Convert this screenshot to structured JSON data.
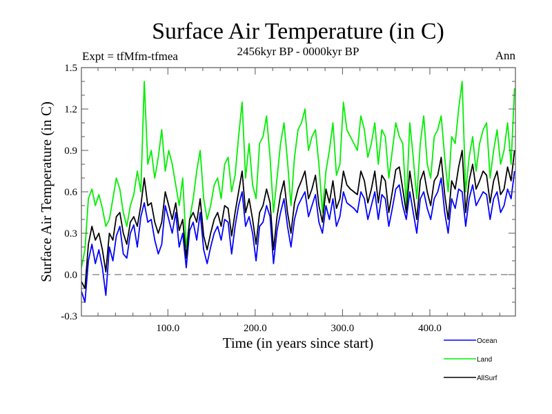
{
  "chart_data": {
    "type": "line",
    "title": "Surface Air Temperature (in C)",
    "subtitle": "2456kyr BP - 0000kyr BP",
    "left_label": "Expt = tfMfm-tfmea",
    "right_label": "Ann",
    "xlabel": "Time (in years since start)",
    "ylabel": "Surface Air Temperature (in C)",
    "xlim": [
      1,
      498
    ],
    "ylim": [
      -0.3,
      1.5
    ],
    "xticks": [
      100,
      200,
      300,
      400
    ],
    "xtick_labels": [
      "100.0",
      "200.0",
      "300.0",
      "400.0"
    ],
    "x_minor_step": 20,
    "yticks": [
      -0.3,
      0.0,
      0.3,
      0.6,
      0.9,
      1.2,
      1.5
    ],
    "ytick_labels": [
      "-0.3",
      "0.0",
      "0.3",
      "0.6",
      "0.9",
      "1.2",
      "1.5"
    ],
    "y_minor_step": 0.1,
    "reference_line": {
      "y": 0.0,
      "style": "dashed"
    },
    "legend_position": "bottom-right",
    "x": [
      1,
      5,
      9,
      13,
      17,
      21,
      25,
      29,
      33,
      37,
      41,
      45,
      49,
      53,
      57,
      61,
      65,
      69,
      73,
      77,
      81,
      85,
      89,
      93,
      97,
      101,
      105,
      109,
      113,
      117,
      121,
      125,
      129,
      133,
      137,
      141,
      145,
      149,
      153,
      157,
      161,
      165,
      169,
      173,
      177,
      181,
      185,
      189,
      193,
      197,
      201,
      205,
      209,
      213,
      217,
      221,
      225,
      229,
      233,
      237,
      241,
      245,
      249,
      253,
      257,
      261,
      265,
      269,
      273,
      277,
      281,
      285,
      289,
      293,
      297,
      301,
      305,
      309,
      313,
      317,
      321,
      325,
      329,
      333,
      337,
      341,
      345,
      349,
      353,
      357,
      361,
      365,
      369,
      373,
      377,
      381,
      385,
      389,
      393,
      397,
      401,
      405,
      409,
      413,
      417,
      421,
      425,
      429,
      433,
      437,
      441,
      445,
      449,
      453,
      457,
      461,
      465,
      469,
      473,
      477,
      481,
      485,
      489,
      493,
      497
    ],
    "series": [
      {
        "name": "Ocean",
        "color": "#0000ff",
        "values": [
          -0.12,
          -0.2,
          0.1,
          0.22,
          0.08,
          0.18,
          0.05,
          -0.15,
          0.2,
          0.1,
          0.28,
          0.35,
          0.15,
          0.12,
          0.3,
          0.36,
          0.2,
          0.42,
          0.52,
          0.38,
          0.4,
          0.25,
          0.15,
          0.22,
          0.5,
          0.4,
          0.3,
          0.45,
          0.2,
          0.3,
          0.05,
          0.32,
          0.38,
          0.25,
          0.45,
          0.18,
          0.08,
          0.2,
          0.3,
          0.35,
          0.25,
          0.4,
          0.38,
          0.15,
          0.35,
          0.5,
          0.6,
          0.35,
          0.42,
          0.3,
          0.1,
          0.35,
          0.38,
          0.5,
          0.42,
          0.08,
          0.32,
          0.45,
          0.55,
          0.35,
          0.2,
          0.4,
          0.5,
          0.55,
          0.6,
          0.42,
          0.5,
          0.58,
          0.38,
          0.3,
          0.5,
          0.4,
          0.55,
          0.35,
          0.42,
          0.6,
          0.52,
          0.5,
          0.48,
          0.45,
          0.6,
          0.55,
          0.4,
          0.5,
          0.6,
          0.4,
          0.58,
          0.55,
          0.35,
          0.48,
          0.62,
          0.65,
          0.5,
          0.4,
          0.6,
          0.45,
          0.3,
          0.55,
          0.6,
          0.48,
          0.4,
          0.55,
          0.6,
          0.7,
          0.45,
          0.3,
          0.55,
          0.48,
          0.62,
          0.6,
          0.35,
          0.55,
          0.65,
          0.5,
          0.55,
          0.6,
          0.58,
          0.4,
          0.55,
          0.6,
          0.45,
          0.5,
          0.62,
          0.55,
          0.75
        ]
      },
      {
        "name": "Land",
        "color": "#00ee00",
        "values": [
          0.05,
          0.18,
          0.55,
          0.62,
          0.5,
          0.58,
          0.48,
          0.35,
          0.4,
          0.55,
          0.7,
          0.62,
          0.45,
          0.35,
          0.5,
          0.58,
          0.75,
          0.6,
          1.4,
          0.8,
          0.9,
          0.7,
          0.85,
          1.05,
          0.75,
          0.9,
          0.8,
          0.65,
          0.5,
          0.7,
          0.2,
          0.4,
          0.55,
          0.75,
          0.9,
          0.55,
          0.4,
          0.5,
          0.65,
          0.7,
          0.55,
          0.8,
          0.85,
          0.6,
          0.72,
          1.0,
          1.25,
          0.7,
          0.95,
          0.65,
          0.55,
          0.95,
          1.0,
          1.15,
          0.85,
          0.45,
          0.7,
          0.95,
          1.1,
          0.82,
          0.5,
          0.85,
          1.05,
          1.1,
          1.2,
          0.9,
          1.0,
          1.05,
          0.8,
          0.45,
          0.75,
          0.9,
          1.1,
          0.72,
          0.8,
          1.25,
          1.05,
          1.0,
          0.95,
          0.9,
          1.15,
          1.05,
          0.85,
          0.95,
          1.1,
          0.8,
          1.05,
          1.0,
          0.7,
          0.9,
          1.1,
          1.0,
          0.95,
          0.5,
          1.1,
          0.85,
          0.55,
          0.95,
          1.15,
          0.8,
          0.7,
          1.0,
          1.05,
          1.15,
          0.85,
          0.6,
          1.0,
          0.95,
          1.2,
          1.4,
          0.6,
          0.85,
          1.0,
          0.75,
          0.95,
          1.05,
          1.1,
          0.7,
          0.9,
          1.05,
          0.8,
          0.9,
          1.1,
          0.8,
          1.35
        ]
      },
      {
        "name": "AllSurf",
        "color": "#000000",
        "values": [
          -0.05,
          -0.1,
          0.22,
          0.35,
          0.25,
          0.3,
          0.18,
          0.02,
          0.3,
          0.25,
          0.42,
          0.45,
          0.3,
          0.22,
          0.38,
          0.42,
          0.35,
          0.5,
          0.7,
          0.5,
          0.52,
          0.38,
          0.3,
          0.38,
          0.6,
          0.5,
          0.4,
          0.52,
          0.32,
          0.4,
          0.12,
          0.4,
          0.45,
          0.38,
          0.55,
          0.28,
          0.18,
          0.3,
          0.4,
          0.45,
          0.35,
          0.5,
          0.48,
          0.28,
          0.45,
          0.6,
          0.75,
          0.45,
          0.55,
          0.4,
          0.22,
          0.45,
          0.5,
          0.62,
          0.52,
          0.18,
          0.42,
          0.58,
          0.68,
          0.45,
          0.3,
          0.52,
          0.62,
          0.68,
          0.75,
          0.55,
          0.62,
          0.72,
          0.5,
          0.38,
          0.62,
          0.52,
          0.68,
          0.48,
          0.55,
          0.75,
          0.65,
          0.62,
          0.6,
          0.58,
          0.75,
          0.68,
          0.52,
          0.62,
          0.75,
          0.52,
          0.72,
          0.68,
          0.45,
          0.6,
          0.76,
          0.78,
          0.62,
          0.45,
          0.75,
          0.58,
          0.4,
          0.68,
          0.75,
          0.6,
          0.5,
          0.68,
          0.72,
          0.85,
          0.58,
          0.4,
          0.68,
          0.62,
          0.78,
          0.9,
          0.45,
          0.68,
          0.8,
          0.62,
          0.68,
          0.75,
          0.72,
          0.52,
          0.68,
          0.75,
          0.58,
          0.62,
          0.78,
          0.68,
          0.9
        ]
      }
    ]
  }
}
